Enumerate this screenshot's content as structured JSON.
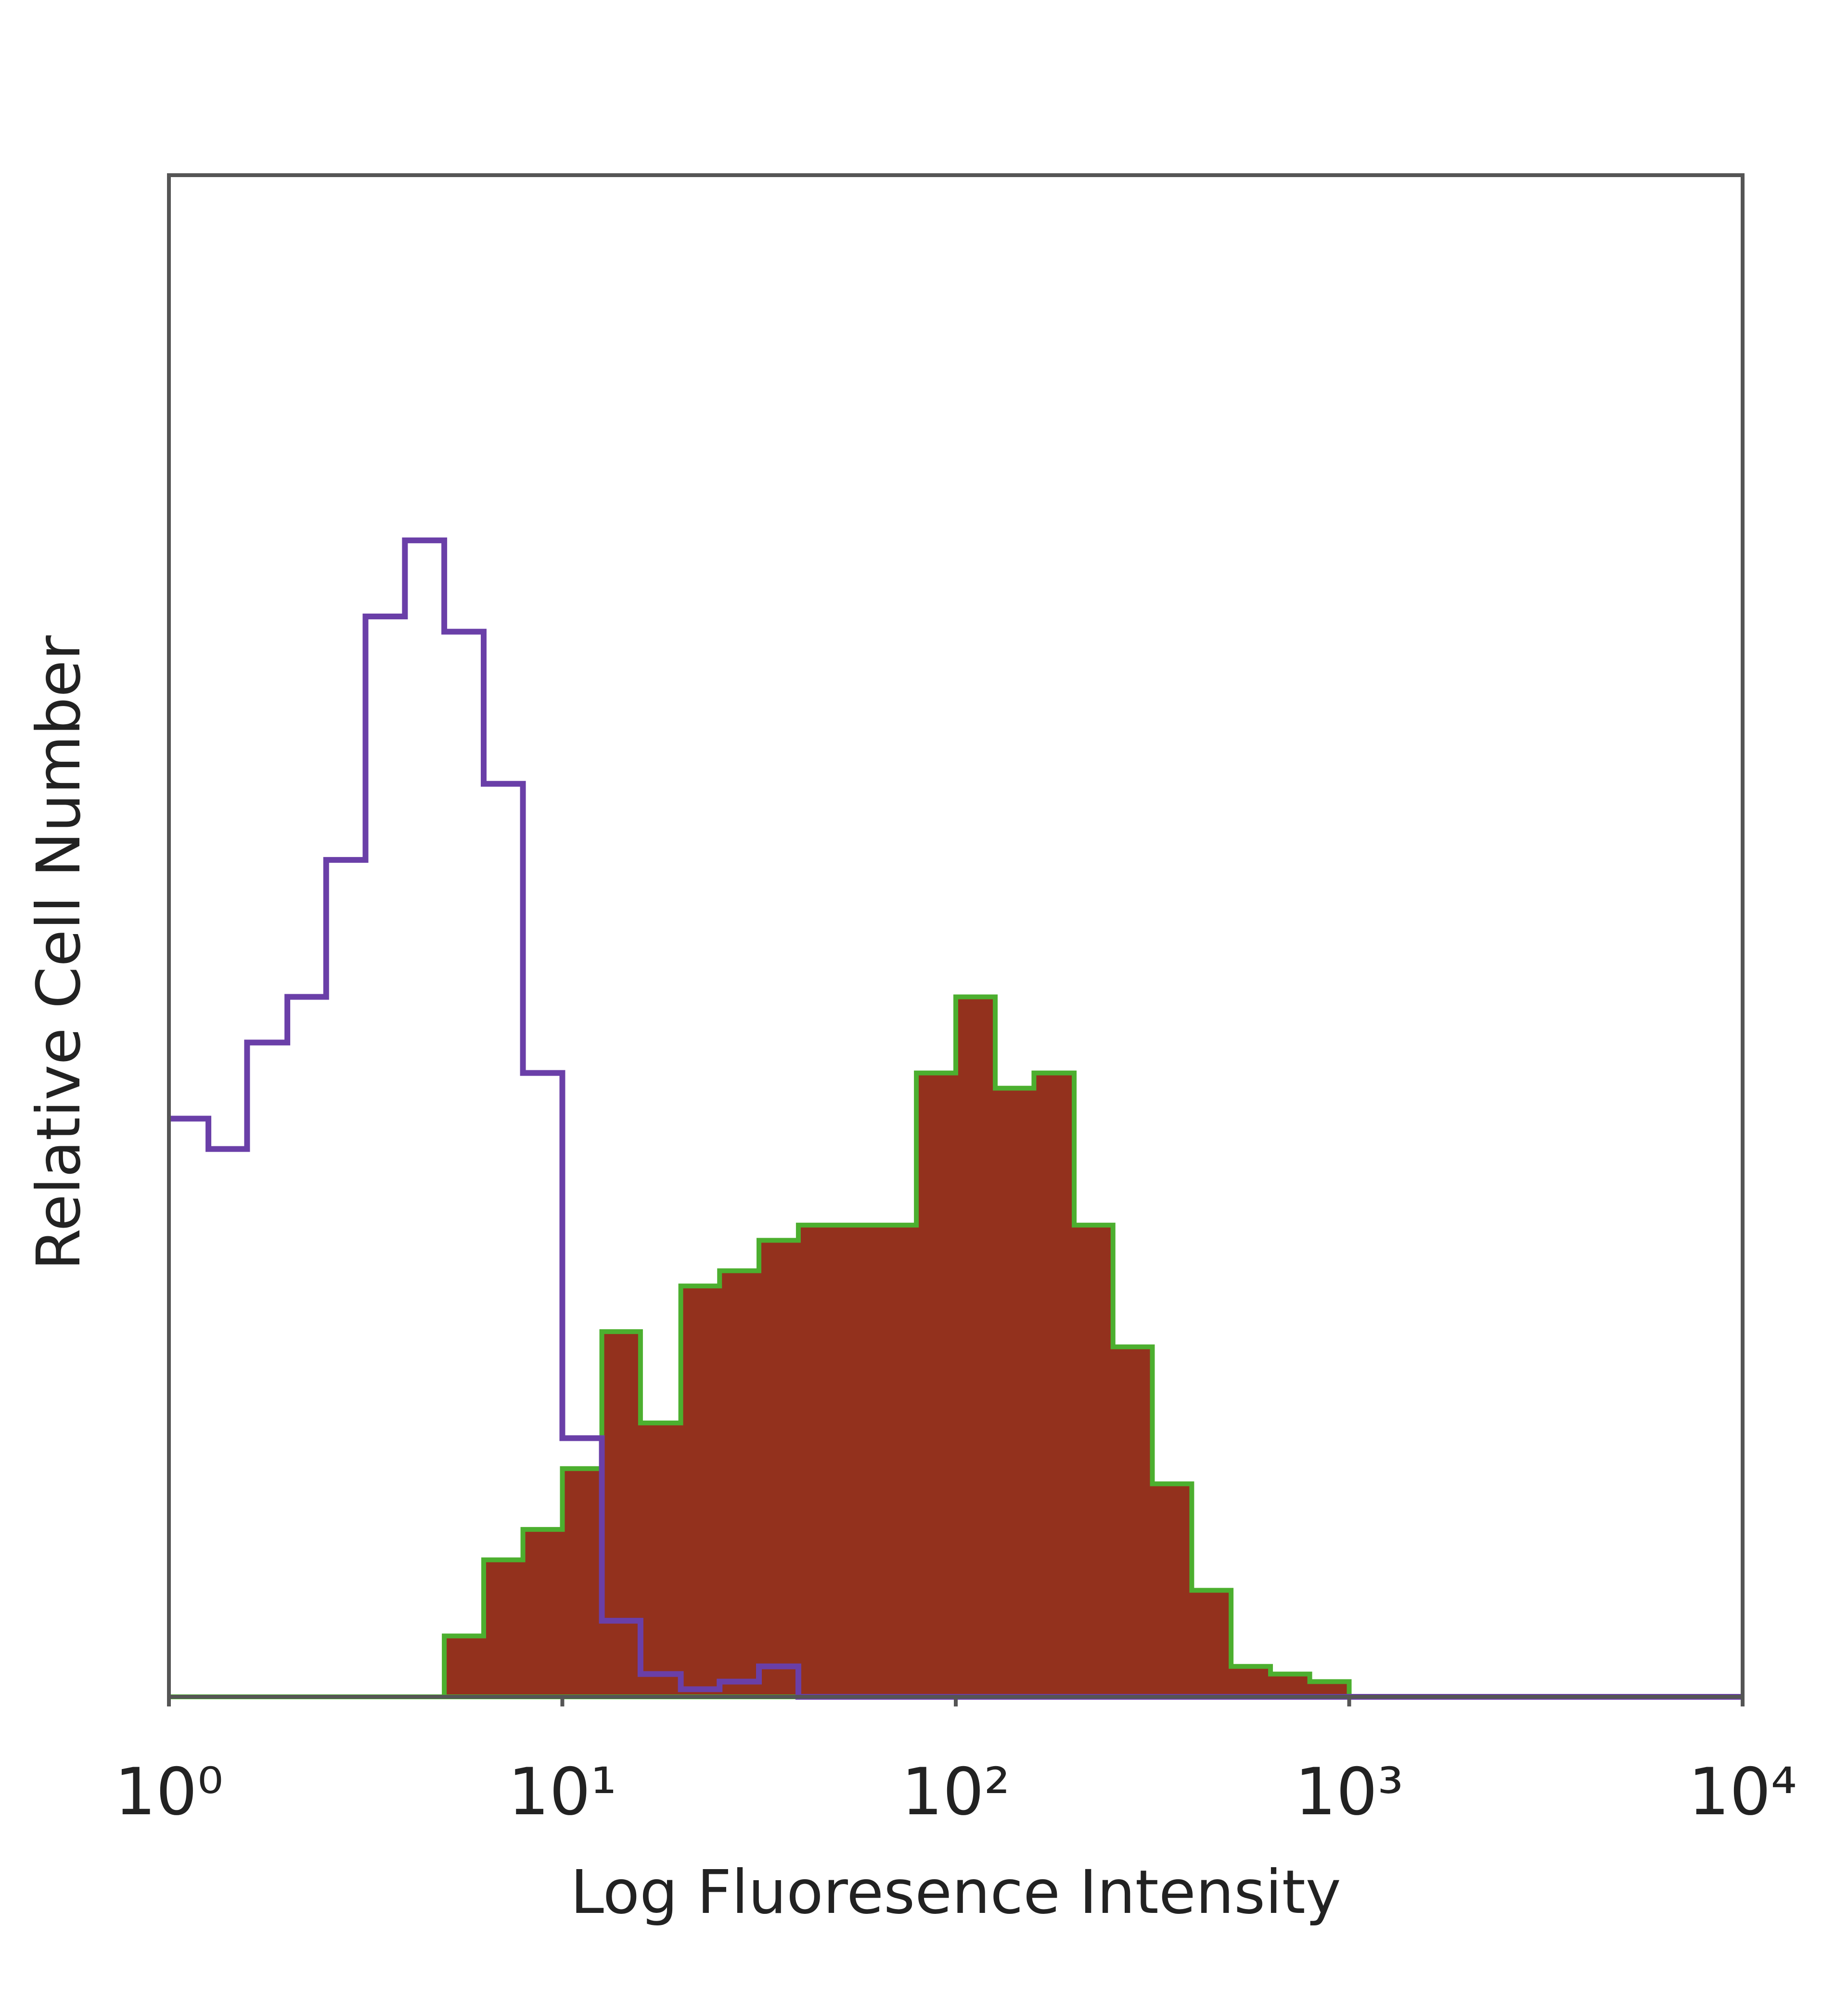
{
  "chart_data": {
    "type": "histogram",
    "x_label": "Log Fluoresence Intensity",
    "y_label": "Relative Cell Number",
    "xscale": "log",
    "xlim": [
      1,
      10000
    ],
    "ylim": [
      0,
      100
    ],
    "xticks": [
      {
        "value": 1,
        "label": "10⁰"
      },
      {
        "value": 10,
        "label": "10¹"
      },
      {
        "value": 100,
        "label": "10²"
      },
      {
        "value": 1000,
        "label": "10³"
      },
      {
        "value": 10000,
        "label": "10⁴"
      }
    ],
    "x": [
      1,
      1.26,
      1.58,
      2,
      2.51,
      3.16,
      3.98,
      5.01,
      6.31,
      7.94,
      10,
      12.6,
      15.8,
      20,
      25.1,
      31.6,
      39.8,
      50.1,
      63.1,
      79.4,
      100,
      126,
      158,
      200,
      251,
      316,
      398,
      501,
      631,
      794,
      1000
    ],
    "series": [
      {
        "color": "#93311d",
        "edge_color": "#4caf2f",
        "filled": true,
        "values": [
          0,
          0,
          0,
          0,
          0,
          0,
          0,
          4,
          9,
          11,
          15,
          24,
          18,
          27,
          28,
          30,
          31,
          31,
          31,
          41,
          46,
          40,
          41,
          31,
          23,
          14,
          7,
          2,
          1.5,
          1,
          0
        ]
      },
      {
        "color": "#6a3fa8",
        "filled": false,
        "values": [
          38,
          36,
          43,
          46,
          55,
          71,
          76,
          70,
          60,
          41,
          17,
          5,
          1.5,
          0.5,
          1,
          2,
          0,
          0,
          0,
          0,
          0,
          0,
          0,
          0,
          0,
          0,
          0,
          0,
          0,
          0,
          0
        ]
      }
    ]
  }
}
